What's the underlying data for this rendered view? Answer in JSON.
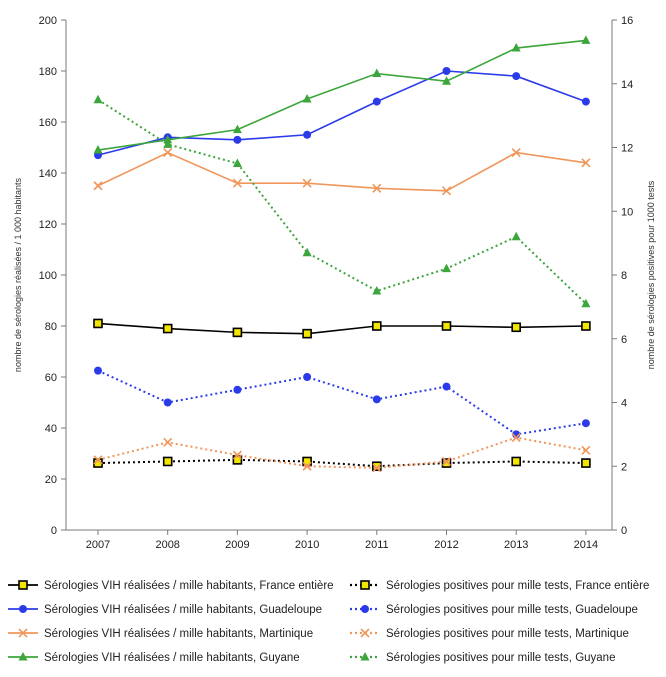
{
  "chart_data": {
    "type": "line",
    "categories": [
      "2007",
      "2008",
      "2009",
      "2010",
      "2011",
      "2012",
      "2013",
      "2014"
    ],
    "y_left": {
      "label": "nombre de sérologies réalisées / 1 000 habitants",
      "range": [
        0,
        200
      ],
      "ticks": [
        "0",
        "20",
        "40",
        "60",
        "80",
        "100",
        "120",
        "140",
        "160",
        "180",
        "200"
      ]
    },
    "y_right": {
      "label": "nombre de sérologies positives pour 1000 tests",
      "range": [
        0,
        16
      ],
      "ticks": [
        "0",
        "2",
        "4",
        "6",
        "8",
        "10",
        "12",
        "14",
        "16"
      ]
    },
    "grid": false,
    "legend_position": "bottom",
    "series": [
      {
        "name": "Sérologies VIH réalisées / mille habitants, France entière",
        "axis": "left",
        "style": "solid",
        "marker": "square",
        "color": "#000000",
        "marker_fill": "#f2e600",
        "values": [
          81,
          79,
          77.5,
          77,
          80,
          80,
          79.5,
          80
        ]
      },
      {
        "name": "Sérologies VIH réalisées / mille habitants, Guadeloupe",
        "axis": "left",
        "style": "solid",
        "marker": "circle",
        "color": "#2b3bea",
        "values": [
          147,
          154,
          153,
          155,
          168,
          180,
          178,
          168
        ]
      },
      {
        "name": "Sérologies VIH réalisées / mille habitants, Martinique",
        "axis": "left",
        "style": "solid",
        "marker": "x",
        "color": "#f0965a",
        "values": [
          135,
          148,
          136,
          136,
          134,
          133,
          148,
          144
        ]
      },
      {
        "name": "Sérologies VIH réalisées / mille habitants, Guyane",
        "axis": "left",
        "style": "solid",
        "marker": "triangle",
        "color": "#3ca53c",
        "values": [
          149,
          153,
          157,
          169,
          179,
          176,
          189,
          192
        ]
      },
      {
        "name": "Sérologies positives pour mille tests, France entière",
        "axis": "right",
        "style": "dotted",
        "marker": "square",
        "color": "#000000",
        "marker_fill": "#f2e600",
        "values": [
          2.1,
          2.15,
          2.2,
          2.15,
          2.0,
          2.1,
          2.15,
          2.1
        ]
      },
      {
        "name": "Sérologies positives pour mille tests, Guadeloupe",
        "axis": "right",
        "style": "dotted",
        "marker": "circle",
        "color": "#2b3bea",
        "values": [
          5.0,
          4.0,
          4.4,
          4.8,
          4.1,
          4.5,
          3.0,
          3.35
        ]
      },
      {
        "name": "Sérologies positives pour mille tests, Martinique",
        "axis": "right",
        "style": "dotted",
        "marker": "x",
        "color": "#f0965a",
        "values": [
          2.2,
          2.75,
          2.35,
          2.0,
          1.95,
          2.15,
          2.9,
          2.5
        ]
      },
      {
        "name": "Sérologies positives pour mille tests, Guyane",
        "axis": "right",
        "style": "dotted",
        "marker": "triangle",
        "color": "#3ca53c",
        "values": [
          13.5,
          12.1,
          11.5,
          8.7,
          7.5,
          8.2,
          9.2,
          7.1
        ]
      }
    ]
  }
}
